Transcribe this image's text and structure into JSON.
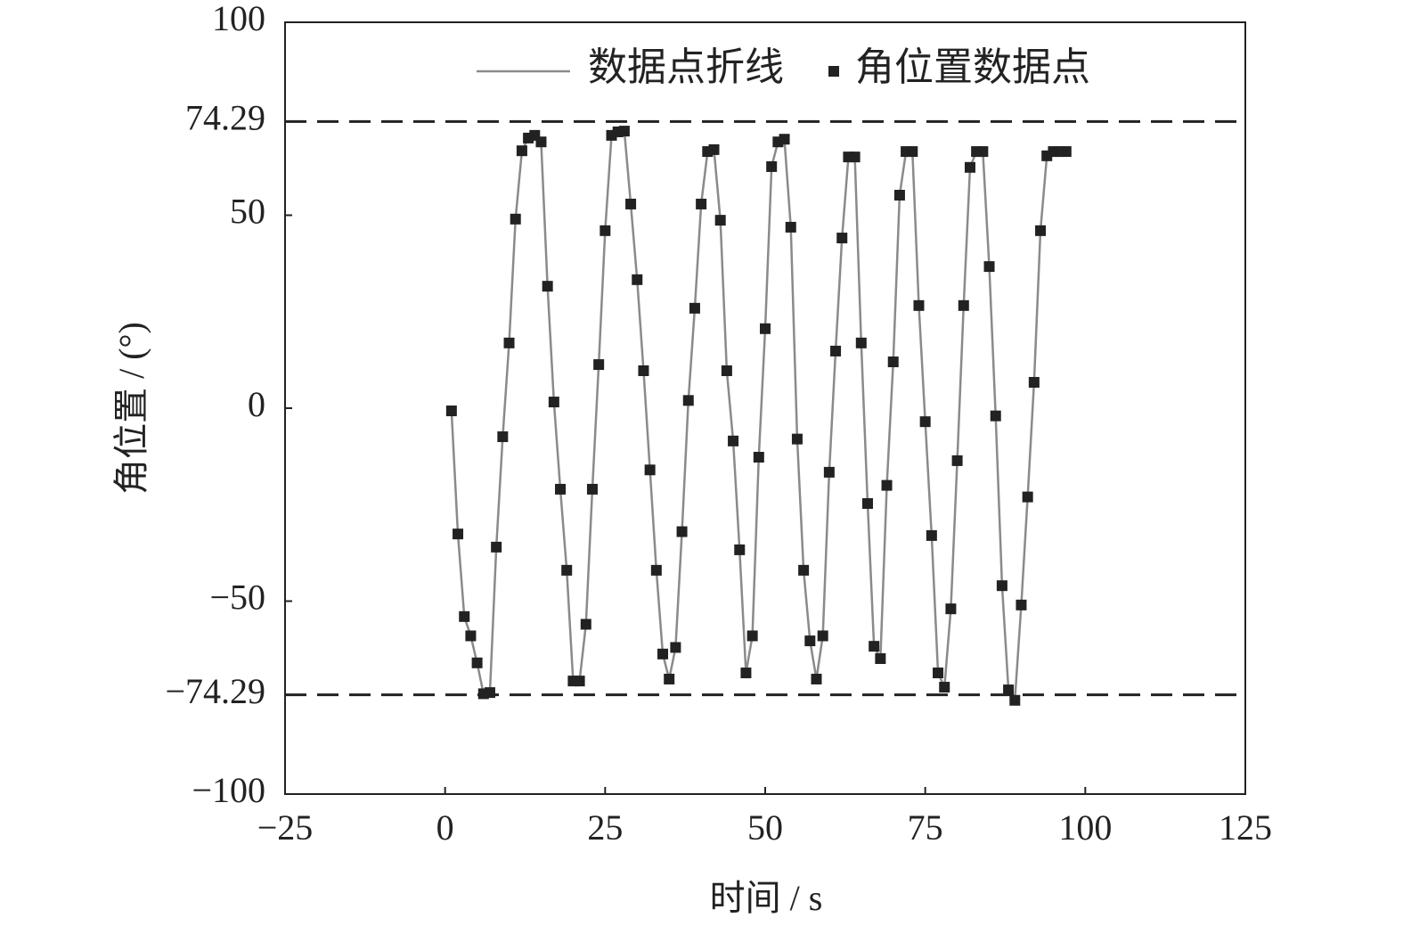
{
  "chart_data": {
    "type": "line",
    "xlabel": "时间 / s",
    "ylabel": "角位置 / (°)",
    "x": [
      1,
      2,
      3,
      4,
      5,
      6,
      7,
      8,
      9,
      10,
      11,
      12,
      13,
      14,
      15,
      16,
      17,
      18,
      19,
      20,
      21,
      22,
      23,
      24,
      25,
      26,
      27,
      28,
      29,
      30,
      31,
      32,
      33,
      34,
      35,
      36,
      37,
      38,
      39,
      40,
      41,
      42,
      43,
      44,
      45,
      46,
      47,
      48,
      49,
      50,
      51,
      52,
      53,
      54,
      55,
      56,
      57,
      58,
      59,
      60,
      61,
      62,
      63,
      64,
      65,
      66,
      67,
      68,
      69,
      70,
      71,
      72,
      73,
      74,
      75,
      76,
      77,
      78,
      79,
      80,
      81,
      82,
      83,
      84,
      85,
      86,
      87,
      88,
      89,
      90,
      91,
      92,
      93,
      94,
      95,
      96,
      97
    ],
    "values": [
      -0.7,
      -32.6,
      -54,
      -59,
      -66,
      -74,
      -73.7,
      -36,
      -7.4,
      16.9,
      49,
      66.7,
      70,
      70.7,
      69,
      31.6,
      1.6,
      -21,
      -42,
      -70.7,
      -70.7,
      -56,
      -21,
      11.3,
      46,
      70.7,
      71.6,
      71.8,
      52.9,
      33.3,
      9.7,
      -16,
      -42,
      -63.7,
      -70.2,
      -62,
      -32,
      2,
      25.9,
      52.9,
      66.5,
      67,
      48.7,
      9.7,
      -8.5,
      -36.7,
      -68.6,
      -59,
      -12.7,
      20.6,
      62.6,
      69,
      69.7,
      46.9,
      -8,
      -42,
      -60.3,
      -70.2,
      -59,
      -16.6,
      14.8,
      44.1,
      65.1,
      65.1,
      16.9,
      -24.7,
      -61.7,
      -64.9,
      -20,
      12,
      55.2,
      66.5,
      66.5,
      26.6,
      -3.5,
      -33,
      -68.6,
      -72.3,
      -52,
      -13.6,
      26.6,
      62.4,
      66.5,
      66.5,
      36.7,
      -2,
      -46,
      -73,
      -75.7,
      -51,
      -23,
      6.7,
      46,
      65.4,
      66.5,
      66.5,
      66.5
    ],
    "legend": [
      {
        "name": "数据点折线",
        "style": "line",
        "color": "#8a8a8a"
      },
      {
        "name": "角位置数据点",
        "style": "marker",
        "color": "#222222"
      }
    ],
    "hlines": [
      74.29,
      {
        "value": -74.29,
        "label": "−74.29"
      }
    ],
    "xlim": [
      -25,
      125
    ],
    "xticks": [
      {
        "value": -25,
        "label": "−25"
      },
      0,
      25,
      50,
      75,
      100,
      125
    ],
    "ylim": [
      -100,
      100
    ],
    "yticks": [
      {
        "value": -100,
        "label": "−100"
      },
      {
        "value": -74.29,
        "label": "−74.29"
      },
      {
        "value": -50,
        "label": "−50"
      },
      0,
      50,
      74.29,
      100
    ]
  }
}
